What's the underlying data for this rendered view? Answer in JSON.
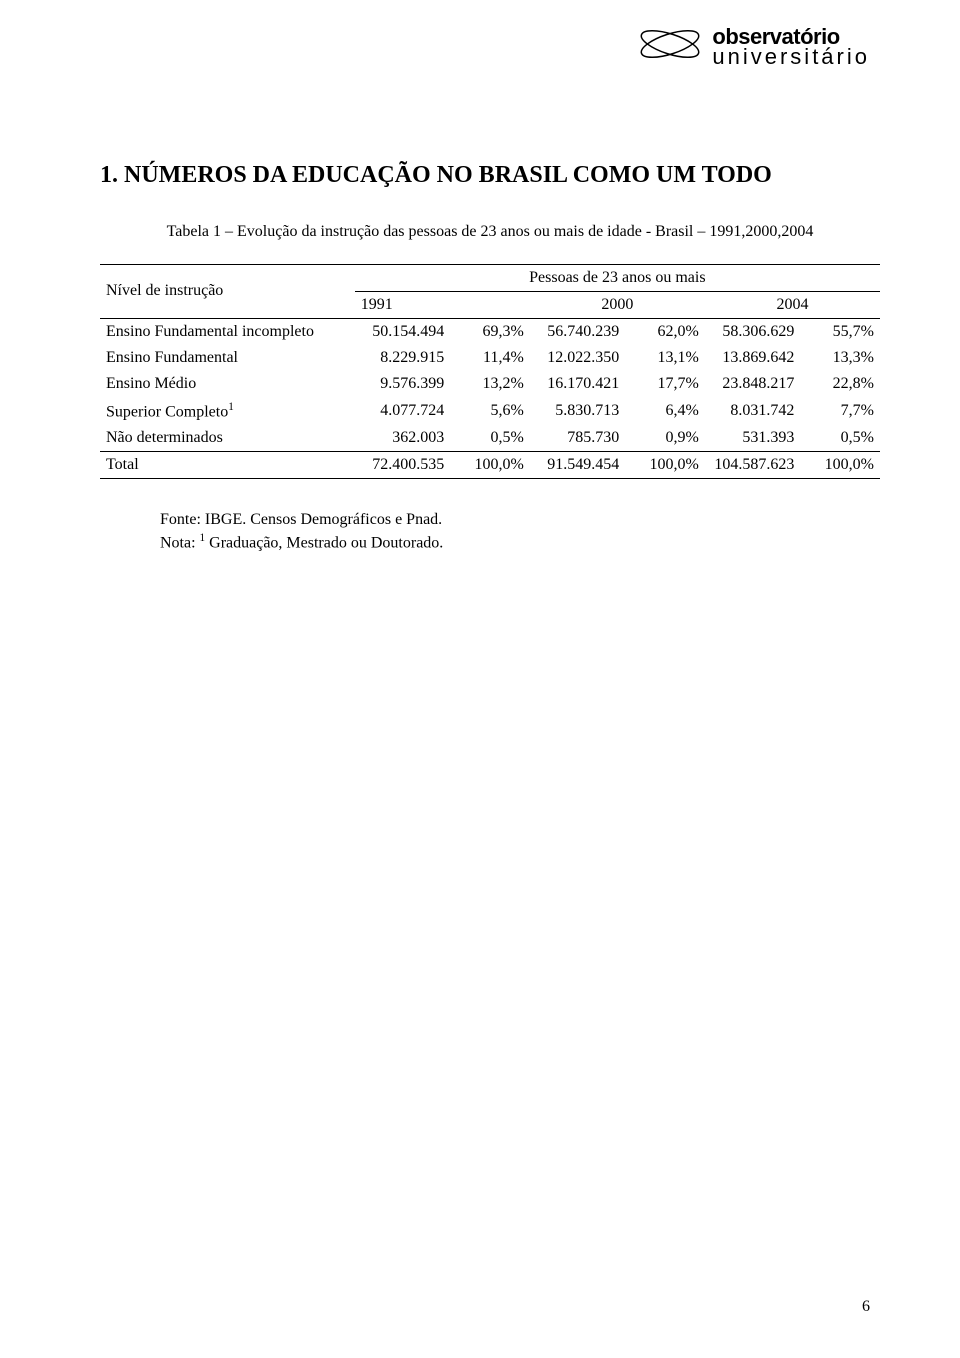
{
  "logo": {
    "text_upper": "observatório",
    "text_lower": "universitário",
    "ellipse_stroke": "#000000",
    "ellipse_fill": "none"
  },
  "section_title": "1. NÚMEROS DA EDUCAÇÃO NO BRASIL COMO UM TODO",
  "table": {
    "caption": "Tabela 1 – Evolução da instrução das pessoas de 23 anos ou mais de idade - Brasil – 1991,2000,2004",
    "header": {
      "col1": "Nível de instrução",
      "span_label": "Pessoas de 23 anos ou mais",
      "years": [
        "1991",
        "2000",
        "2004"
      ]
    },
    "rows": [
      {
        "label": "Ensino Fundamental incompleto",
        "v1": "50.154.494",
        "p1": "69,3%",
        "v2": "56.740.239",
        "p2": "62,0%",
        "v3": "58.306.629",
        "p3": "55,7%"
      },
      {
        "label": "Ensino Fundamental",
        "v1": "8.229.915",
        "p1": "11,4%",
        "v2": "12.022.350",
        "p2": "13,1%",
        "v3": "13.869.642",
        "p3": "13,3%"
      },
      {
        "label": "Ensino Médio",
        "v1": "9.576.399",
        "p1": "13,2%",
        "v2": "16.170.421",
        "p2": "17,7%",
        "v3": "23.848.217",
        "p3": "22,8%"
      },
      {
        "label_html": "Superior Completo<sup>1</sup>",
        "v1": "4.077.724",
        "p1": "5,6%",
        "v2": "5.830.713",
        "p2": "6,4%",
        "v3": "8.031.742",
        "p3": "7,7%"
      },
      {
        "label": "Não determinados",
        "v1": "362.003",
        "p1": "0,5%",
        "v2": "785.730",
        "p2": "0,9%",
        "v3": "531.393",
        "p3": "0,5%"
      }
    ],
    "total": {
      "label": "Total",
      "v1": "72.400.535",
      "p1": "100,0%",
      "v2": "91.549.454",
      "p2": "100,0%",
      "v3": "104.587.623",
      "p3": "100,0%"
    }
  },
  "source": "Fonte: IBGE. Censos Demográficos e Pnad.",
  "note_html": "Nota: <sup>1</sup> Graduação, Mestrado ou Doutorado.",
  "page_number": "6",
  "colors": {
    "text": "#000000",
    "background": "#ffffff",
    "border": "#000000"
  },
  "typography": {
    "body_fontsize_pt": 12,
    "title_fontsize_pt": 18,
    "font_family": "Palatino Linotype, Book Antiqua, serif"
  }
}
